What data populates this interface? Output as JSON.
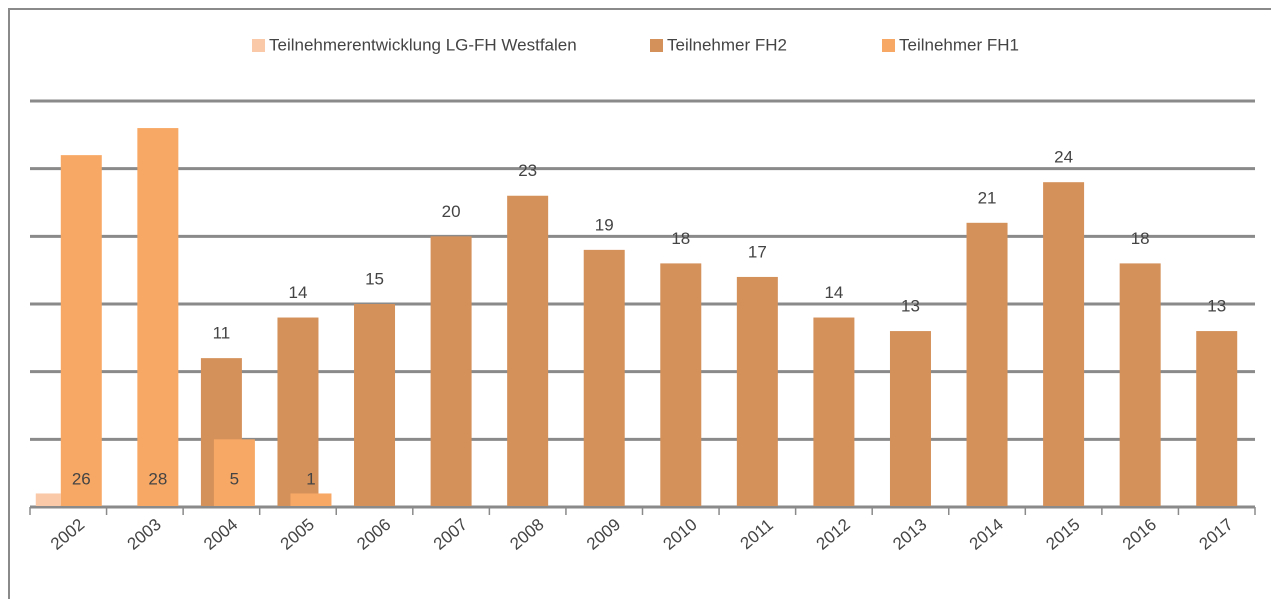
{
  "chart_data": {
    "type": "bar",
    "categories": [
      "2002",
      "2003",
      "2004",
      "2005",
      "2006",
      "2007",
      "2008",
      "2009",
      "2010",
      "2011",
      "2012",
      "2013",
      "2014",
      "2015",
      "2016",
      "2017"
    ],
    "series": [
      {
        "name": "Teilnehmerentwicklung LG-FH Westfalen",
        "color": "#f9c9a8",
        "values": [
          1,
          null,
          null,
          null,
          null,
          null,
          null,
          null,
          null,
          null,
          null,
          null,
          null,
          null,
          null,
          null
        ],
        "data_labels": false
      },
      {
        "name": "Teilnehmer FH2",
        "color": "#d4915a",
        "values": [
          null,
          null,
          11,
          14,
          15,
          20,
          23,
          19,
          18,
          17,
          14,
          13,
          21,
          24,
          18,
          13
        ],
        "data_labels": true,
        "label_position": "outside_end"
      },
      {
        "name": "Teilnehmer FH1",
        "color": "#f8a865",
        "values": [
          26,
          28,
          5,
          1,
          null,
          null,
          null,
          null,
          null,
          null,
          null,
          null,
          null,
          null,
          null,
          null
        ],
        "data_labels": true,
        "label_position": "base"
      }
    ],
    "ylim": [
      0,
      30
    ],
    "yticks": [
      0,
      5,
      10,
      15,
      20,
      25,
      30
    ],
    "grid": true,
    "legend": "top"
  }
}
